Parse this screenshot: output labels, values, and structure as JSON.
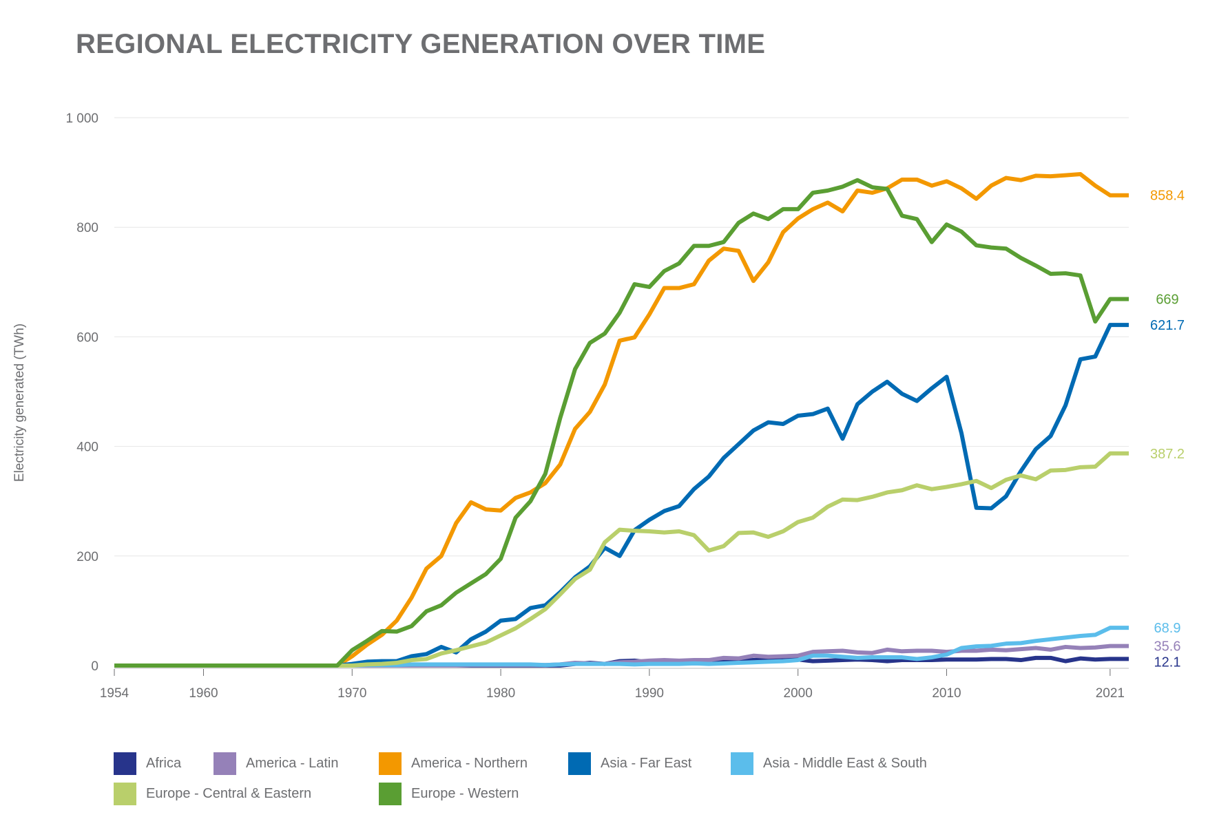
{
  "chart_data": {
    "type": "line",
    "title": "REGIONAL ELECTRICITY GENERATION OVER TIME",
    "xlabel": "",
    "ylabel": "Electricity generated (TWh)",
    "ylim": [
      0,
      1000
    ],
    "xlim": [
      1954,
      2021
    ],
    "grid": "horizontal",
    "legend": "bottom",
    "x_ticks": [
      1954,
      1960,
      1970,
      1980,
      1990,
      2000,
      2010,
      2021
    ],
    "y_ticks": [
      0,
      200,
      400,
      600,
      800,
      1000
    ],
    "y_tick_labels": [
      "0",
      "200",
      "400",
      "600",
      "800",
      "1 000"
    ],
    "x": [
      1954,
      1955,
      1956,
      1957,
      1958,
      1959,
      1960,
      1961,
      1962,
      1963,
      1964,
      1965,
      1966,
      1967,
      1968,
      1969,
      1970,
      1971,
      1972,
      1973,
      1974,
      1975,
      1976,
      1977,
      1978,
      1979,
      1980,
      1981,
      1982,
      1983,
      1984,
      1985,
      1986,
      1987,
      1988,
      1989,
      1990,
      1991,
      1992,
      1993,
      1994,
      1995,
      1996,
      1997,
      1998,
      1999,
      2000,
      2001,
      2002,
      2003,
      2004,
      2005,
      2006,
      2007,
      2008,
      2009,
      2010,
      2011,
      2012,
      2013,
      2014,
      2015,
      2016,
      2017,
      2018,
      2019,
      2020,
      2021
    ],
    "series": [
      {
        "name": "Africa",
        "color": "#27348b",
        "end_label": "12.1",
        "values": [
          0,
          0,
          0,
          0,
          0,
          0,
          0,
          0,
          0,
          0,
          0,
          0,
          0,
          0,
          0,
          0,
          0,
          0,
          0,
          0,
          0,
          0,
          0,
          0,
          0,
          0,
          0,
          0,
          0,
          0,
          0,
          3,
          5,
          3,
          8,
          9,
          6,
          7,
          7,
          7,
          8,
          9,
          9,
          10,
          11,
          11,
          11,
          8,
          9,
          10,
          11,
          10,
          8,
          10,
          10,
          10,
          11,
          11,
          11,
          12,
          12,
          10,
          14,
          14,
          8,
          13,
          11,
          12.1
        ]
      },
      {
        "name": "America - Latin",
        "color": "#9581b8",
        "end_label": "35.6",
        "values": [
          0,
          0,
          0,
          0,
          0,
          0,
          0,
          0,
          0,
          0,
          0,
          0,
          0,
          0,
          0,
          0,
          0,
          0,
          0,
          0,
          0,
          0,
          0,
          0,
          1,
          1,
          1,
          1,
          1,
          1,
          2,
          5,
          4,
          3,
          6,
          7,
          9,
          10,
          9,
          10,
          10,
          14,
          13,
          18,
          16,
          17,
          18,
          25,
          26,
          27,
          24,
          23,
          29,
          26,
          27,
          27,
          25,
          27,
          27,
          29,
          28,
          30,
          32,
          29,
          34,
          32,
          33,
          35.6
        ]
      },
      {
        "name": "America - Northern",
        "color": "#f39800",
        "end_label": "858.4",
        "values": [
          0,
          0,
          0,
          0,
          0,
          0,
          0,
          0,
          0,
          0,
          0,
          0,
          0,
          0,
          0,
          0,
          17,
          38,
          56,
          82,
          124,
          177,
          200,
          260,
          298,
          285,
          283,
          306,
          316,
          333,
          367,
          432,
          463,
          513,
          593,
          599,
          641,
          689,
          689,
          696,
          739,
          761,
          757,
          702,
          736,
          791,
          816,
          833,
          845,
          829,
          867,
          863,
          871,
          887,
          887,
          876,
          884,
          871,
          852,
          876,
          890,
          886,
          894,
          893,
          895,
          897,
          876,
          858.4
        ]
      },
      {
        "name": "Asia - Far East",
        "color": "#006ab3",
        "end_label": "621.7",
        "values": [
          0,
          0,
          0,
          0,
          0,
          0,
          0,
          0,
          0,
          0,
          0,
          0,
          0,
          0,
          0,
          0,
          3,
          7,
          8,
          8,
          17,
          21,
          34,
          24,
          48,
          62,
          82,
          85,
          105,
          110,
          134,
          161,
          181,
          215,
          200,
          247,
          266,
          282,
          291,
          322,
          345,
          379,
          404,
          429,
          444,
          441,
          456,
          459,
          469,
          414,
          477,
          500,
          518,
          496,
          483,
          506,
          527,
          424,
          288,
          287,
          309,
          355,
          395,
          419,
          475,
          559,
          564,
          621.7
        ]
      },
      {
        "name": "Asia - Middle East & South",
        "color": "#5bbdeb",
        "end_label": "68.9",
        "values": [
          0,
          0,
          0,
          0,
          0,
          0,
          0,
          0,
          0,
          0,
          0,
          0,
          0,
          0,
          0,
          0,
          0,
          1,
          1,
          1,
          2,
          2,
          2,
          2,
          2,
          2,
          2,
          2,
          2,
          1,
          2,
          3,
          3,
          3,
          3,
          2,
          3,
          3,
          3,
          4,
          3,
          4,
          5,
          6,
          7,
          8,
          10,
          18,
          18,
          16,
          14,
          15,
          15,
          15,
          12,
          15,
          20,
          32,
          35,
          36,
          40,
          41,
          45,
          48,
          51,
          54,
          56,
          68.9
        ]
      },
      {
        "name": "Europe - Central & Eastern",
        "color": "#b9cf6b",
        "end_label": "387.2",
        "values": [
          0,
          0,
          0,
          0,
          0,
          0,
          0,
          0,
          0,
          0,
          0,
          0,
          0,
          0,
          0,
          0,
          0,
          2,
          3,
          5,
          10,
          12,
          22,
          28,
          35,
          42,
          55,
          68,
          85,
          103,
          130,
          158,
          175,
          225,
          248,
          246,
          245,
          243,
          245,
          238,
          210,
          218,
          242,
          243,
          235,
          245,
          262,
          270,
          290,
          303,
          302,
          308,
          316,
          320,
          329,
          322,
          326,
          331,
          337,
          324,
          339,
          347,
          340,
          356,
          357,
          362,
          363,
          387.2
        ]
      },
      {
        "name": "Europe - Western",
        "color": "#5a9e33",
        "end_label": "669",
        "values": [
          0,
          0,
          0,
          0,
          0,
          0,
          0,
          0,
          0,
          0,
          0,
          0,
          0,
          0,
          0,
          0,
          28,
          45,
          63,
          62,
          72,
          99,
          110,
          133,
          150,
          167,
          195,
          270,
          300,
          350,
          452,
          541,
          589,
          606,
          644,
          696,
          691,
          720,
          734,
          766,
          766,
          773,
          808,
          825,
          815,
          833,
          833,
          863,
          867,
          874,
          886,
          873,
          870,
          821,
          815,
          773,
          805,
          792,
          767,
          763,
          761,
          744,
          730,
          715,
          716,
          712,
          628,
          669
        ]
      }
    ]
  }
}
